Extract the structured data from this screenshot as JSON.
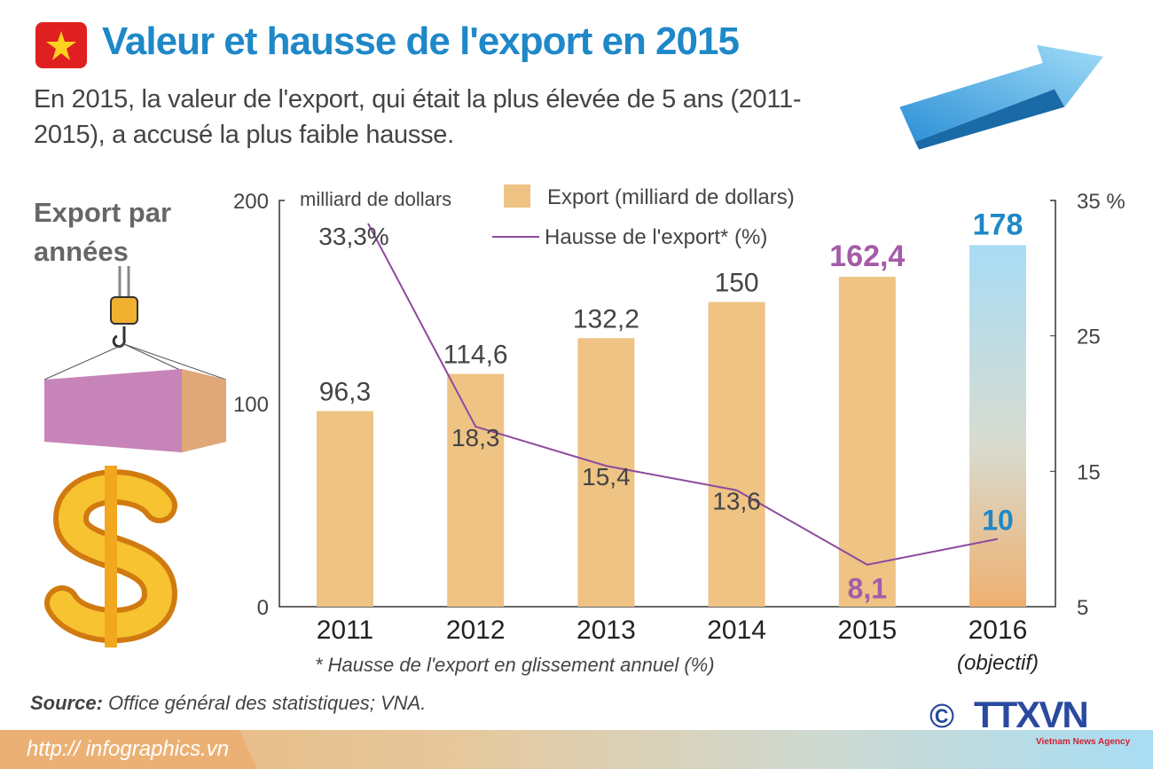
{
  "header": {
    "title": "Valeur et hausse de l'export en 2015",
    "subtitle": "En 2015, la valeur de l'export, qui était la plus élevée de 5 ans (2011-2015), a accusé la plus faible hausse.",
    "section": "Export par années"
  },
  "chart_data": {
    "type": "bar+line",
    "categories": [
      "2011",
      "2012",
      "2013",
      "2014",
      "2015",
      "2016"
    ],
    "category_note": "(objectif)",
    "series": [
      {
        "name": "Export (milliard de dollars)",
        "type": "bar",
        "axis": "left",
        "values": [
          96.3,
          114.6,
          132.2,
          150,
          162.4,
          178
        ],
        "labels": [
          "96,3",
          "114,6",
          "132,2",
          "150",
          "162,4",
          "178"
        ],
        "color": "#eec384"
      },
      {
        "name": "Hausse de l'export* (%)",
        "type": "line",
        "axis": "right",
        "values": [
          33.3,
          18.3,
          15.4,
          13.6,
          8.1,
          10
        ],
        "labels": [
          "33,3%",
          "18,3",
          "15,4",
          "13,6",
          "8,1",
          "10"
        ],
        "color": "#8e4a9e"
      }
    ],
    "left_axis": {
      "label": "milliard de dollars",
      "ylim": [
        0,
        200
      ],
      "ticks": [
        "0",
        "100",
        "200"
      ]
    },
    "right_axis": {
      "ylim": [
        5,
        35
      ],
      "ticks": [
        "5",
        "15",
        "25",
        "35 %"
      ]
    },
    "footnote": "* Hausse de l'export en glissement annuel (%)",
    "highlight_colors": {
      "2015": "#a55ca8",
      "2016": "#1e88c8"
    },
    "legend": "top"
  },
  "source_label": "Source:",
  "source": "Office général des statistiques; VNA.",
  "url": "http:// infographics.vn",
  "logo": {
    "text": "TTXVN",
    "tagline": "Vietnam News Agency",
    "copyright": "©"
  }
}
